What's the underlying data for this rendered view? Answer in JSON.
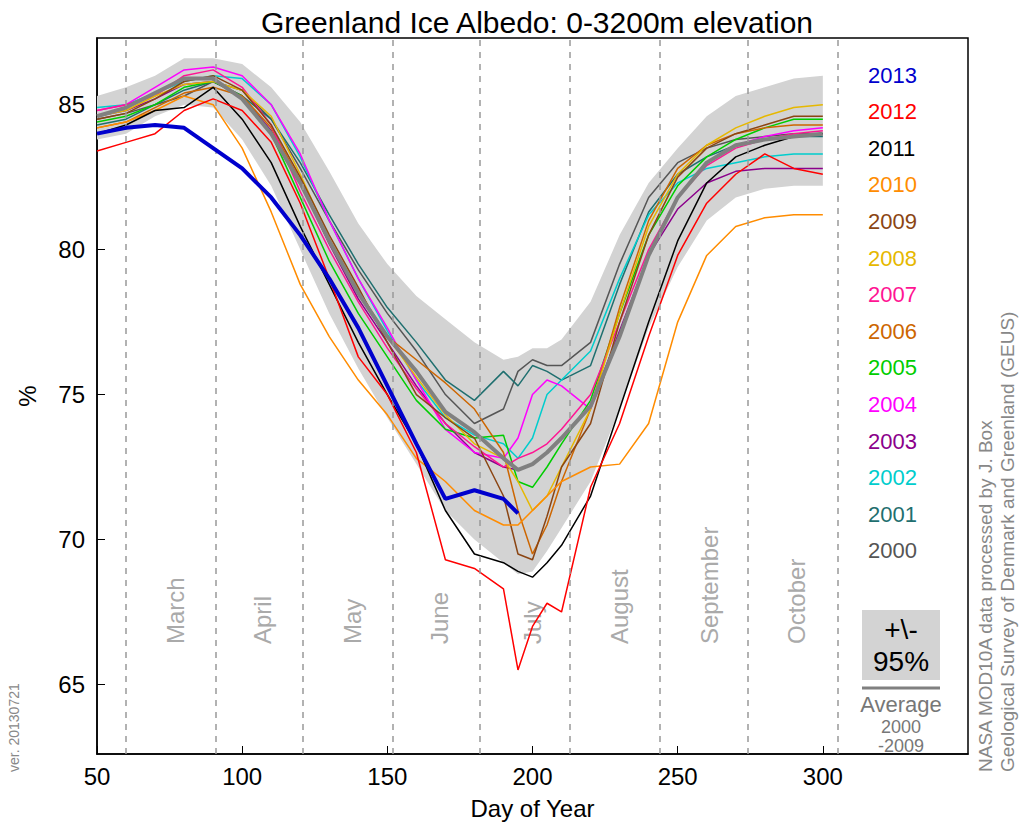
{
  "chart_data": {
    "type": "line",
    "title": "Greenland Ice Albedo: 0-3200m elevation",
    "xlabel": "Day of Year",
    "ylabel": "%",
    "xlim": [
      50,
      350
    ],
    "ylim": [
      62.6,
      87.3
    ],
    "xticks": [
      50,
      100,
      150,
      200,
      250,
      300
    ],
    "yticks": [
      65,
      70,
      75,
      80,
      85
    ],
    "grid": false,
    "legend": "right",
    "x": [
      50,
      60,
      70,
      80,
      90,
      100,
      110,
      120,
      130,
      140,
      150,
      160,
      170,
      180,
      190,
      195,
      200,
      205,
      210,
      220,
      230,
      240,
      250,
      260,
      270,
      280,
      290,
      300
    ],
    "series": [
      {
        "name": "2013",
        "color": "#0000cd",
        "line_style": "thick",
        "values": [
          84.0,
          84.2,
          84.3,
          84.2,
          83.5,
          82.8,
          81.8,
          80.5,
          79.0,
          77.3,
          75.3,
          73.3,
          71.4,
          71.7,
          71.4,
          70.9,
          null,
          null,
          null,
          null,
          null,
          null,
          null,
          null,
          null,
          null,
          null,
          null
        ]
      },
      {
        "name": "2012",
        "color": "#ff0000",
        "values": [
          83.4,
          83.7,
          84.0,
          84.8,
          85.2,
          84.8,
          83.7,
          81.6,
          79.0,
          76.3,
          75.0,
          73.0,
          69.3,
          69.0,
          68.3,
          65.5,
          67.0,
          67.8,
          67.5,
          71.8,
          74.0,
          77.0,
          79.8,
          81.6,
          82.6,
          83.3,
          82.8,
          82.6
        ]
      },
      {
        "name": "2011",
        "color": "#000000",
        "values": [
          84.0,
          84.3,
          84.8,
          84.9,
          85.6,
          84.5,
          83.0,
          80.8,
          78.8,
          76.8,
          75.0,
          73.3,
          71.0,
          69.5,
          69.2,
          68.9,
          68.7,
          69.2,
          69.8,
          71.5,
          74.5,
          77.5,
          80.3,
          82.3,
          83.2,
          83.6,
          83.9,
          84.0
        ]
      },
      {
        "name": "2010",
        "color": "#ff8c00",
        "values": [
          84.2,
          84.4,
          84.8,
          85.3,
          85.0,
          83.5,
          81.3,
          78.8,
          77.0,
          75.5,
          74.3,
          72.8,
          72.0,
          71.0,
          70.5,
          70.5,
          71.0,
          71.5,
          72.0,
          72.5,
          72.6,
          74.0,
          77.5,
          79.8,
          80.8,
          81.1,
          81.2,
          81.2
        ]
      },
      {
        "name": "2009",
        "color": "#8b4513",
        "values": [
          84.5,
          84.7,
          85.2,
          85.8,
          86.0,
          85.5,
          84.3,
          82.5,
          80.5,
          78.7,
          76.8,
          75.0,
          74.2,
          73.5,
          71.5,
          69.5,
          69.3,
          70.8,
          72.5,
          74.0,
          77.5,
          80.5,
          82.5,
          83.5,
          84.0,
          84.3,
          84.6,
          84.6
        ]
      },
      {
        "name": "2008",
        "color": "#e6b800",
        "values": [
          84.6,
          84.8,
          85.3,
          85.7,
          85.8,
          85.5,
          84.6,
          82.6,
          80.4,
          78.6,
          77.0,
          75.6,
          74.3,
          73.3,
          72.8,
          72.0,
          71.0,
          71.5,
          72.5,
          74.5,
          77.8,
          80.8,
          82.6,
          83.6,
          84.2,
          84.6,
          84.9,
          85.0
        ]
      },
      {
        "name": "2007",
        "color": "#ff1493",
        "values": [
          84.8,
          85.0,
          85.3,
          86.0,
          86.2,
          85.6,
          84.3,
          82.0,
          80.0,
          78.2,
          76.6,
          75.2,
          74.0,
          73.2,
          72.5,
          72.8,
          73.0,
          73.3,
          73.8,
          75.0,
          77.5,
          80.0,
          81.8,
          82.9,
          83.5,
          83.8,
          84.0,
          84.1
        ]
      },
      {
        "name": "2006",
        "color": "#cd6600",
        "values": [
          84.2,
          84.4,
          84.9,
          85.4,
          85.6,
          85.3,
          84.2,
          82.4,
          80.3,
          78.6,
          77.0,
          76.2,
          75.4,
          74.5,
          73.0,
          71.0,
          69.5,
          70.5,
          72.0,
          74.5,
          78.0,
          81.0,
          82.8,
          83.6,
          84.0,
          84.2,
          84.3,
          84.3
        ]
      },
      {
        "name": "2005",
        "color": "#00cd00",
        "values": [
          84.4,
          84.6,
          85.0,
          85.6,
          85.8,
          85.3,
          84.0,
          81.8,
          79.6,
          77.8,
          76.3,
          74.8,
          73.8,
          73.5,
          73.6,
          72.0,
          71.8,
          72.5,
          73.3,
          74.8,
          77.8,
          80.5,
          82.2,
          83.2,
          83.8,
          84.2,
          84.5,
          84.5
        ]
      },
      {
        "name": "2004",
        "color": "#ff00ff",
        "values": [
          84.8,
          85.0,
          85.6,
          86.2,
          86.3,
          86.0,
          85.0,
          83.3,
          81.0,
          79.0,
          77.3,
          75.5,
          73.8,
          73.0,
          72.8,
          73.5,
          75.0,
          75.5,
          75.3,
          74.5,
          77.0,
          79.8,
          81.8,
          83.0,
          83.6,
          83.9,
          84.1,
          84.2
        ]
      },
      {
        "name": "2003",
        "color": "#8b008b",
        "values": [
          84.6,
          84.8,
          85.2,
          85.7,
          85.8,
          85.3,
          84.1,
          82.3,
          80.2,
          78.3,
          76.8,
          75.3,
          74.0,
          73.0,
          72.5,
          72.4,
          72.6,
          73.0,
          73.5,
          74.6,
          77.2,
          79.8,
          81.4,
          82.3,
          82.7,
          82.8,
          82.8,
          82.8
        ]
      },
      {
        "name": "2002",
        "color": "#00cdcd",
        "values": [
          84.9,
          85.0,
          85.4,
          85.8,
          86.0,
          85.9,
          85.0,
          83.2,
          81.0,
          79.0,
          77.2,
          75.5,
          74.2,
          73.6,
          73.3,
          72.8,
          73.5,
          75.0,
          75.5,
          76.5,
          79.0,
          81.2,
          82.3,
          82.8,
          83.0,
          83.2,
          83.3,
          83.3
        ]
      },
      {
        "name": "2001",
        "color": "#1f6f6f",
        "values": [
          84.3,
          84.5,
          85.0,
          85.5,
          85.8,
          85.3,
          84.5,
          83.0,
          81.2,
          79.5,
          78.0,
          76.8,
          75.5,
          74.8,
          75.8,
          75.3,
          76.0,
          75.8,
          75.5,
          76.0,
          78.8,
          81.3,
          82.6,
          83.2,
          83.6,
          83.8,
          83.9,
          83.9
        ]
      },
      {
        "name": "2000",
        "color": "#555555",
        "values": [
          84.5,
          84.7,
          85.0,
          85.3,
          85.8,
          85.5,
          84.5,
          82.8,
          81.0,
          79.3,
          77.8,
          76.5,
          75.0,
          74.0,
          74.5,
          75.8,
          76.2,
          76.0,
          76.0,
          76.8,
          79.5,
          81.8,
          83.0,
          83.5,
          83.8,
          83.9,
          84.0,
          84.0
        ]
      }
    ],
    "annotations": {
      "average": {
        "name": "Average\n2000\n-2009",
        "color": "#808080",
        "line_style": "thick",
        "values": [
          84.6,
          84.9,
          85.4,
          85.9,
          85.9,
          85.2,
          84.0,
          82.3,
          80.3,
          78.5,
          77.0,
          75.8,
          74.4,
          73.7,
          72.8,
          72.4,
          72.6,
          73.0,
          73.5,
          74.6,
          77.0,
          79.8,
          81.8,
          83.0,
          83.6,
          83.8,
          83.9,
          84.0
        ]
      },
      "band": {
        "name": "+\\-\n95%",
        "color": "#d3d3d3",
        "lower": [
          83.8,
          84.0,
          84.6,
          85.0,
          84.9,
          83.8,
          82.2,
          80.0,
          77.8,
          75.9,
          74.2,
          72.6,
          71.0,
          70.0,
          69.2,
          68.8,
          68.9,
          69.6,
          70.4,
          72.0,
          74.5,
          77.3,
          79.4,
          81.0,
          81.8,
          82.1,
          82.2,
          82.2
        ],
        "upper": [
          85.3,
          85.6,
          86.0,
          86.6,
          86.6,
          86.4,
          85.6,
          84.4,
          82.7,
          80.9,
          79.5,
          78.4,
          77.6,
          76.8,
          76.2,
          76.3,
          76.6,
          76.6,
          76.9,
          78.2,
          80.5,
          82.3,
          83.5,
          84.6,
          85.3,
          85.6,
          85.9,
          86.0
        ]
      },
      "month_lines": [
        60,
        91,
        121,
        152,
        182,
        213,
        244,
        274,
        305
      ],
      "months": [
        {
          "label": "March",
          "x": 77
        },
        {
          "label": "April",
          "x": 107
        },
        {
          "label": "May",
          "x": 138
        },
        {
          "label": "June",
          "x": 168
        },
        {
          "label": "July",
          "x": 200
        },
        {
          "label": "August",
          "x": 230
        },
        {
          "label": "September",
          "x": 261
        },
        {
          "label": "October",
          "x": 291
        }
      ],
      "source": "NASA MOD10A data processed by J. Box\nGeological Survey of Denmark and Greenland (GEUS)",
      "version": "ver. 20130721"
    }
  }
}
